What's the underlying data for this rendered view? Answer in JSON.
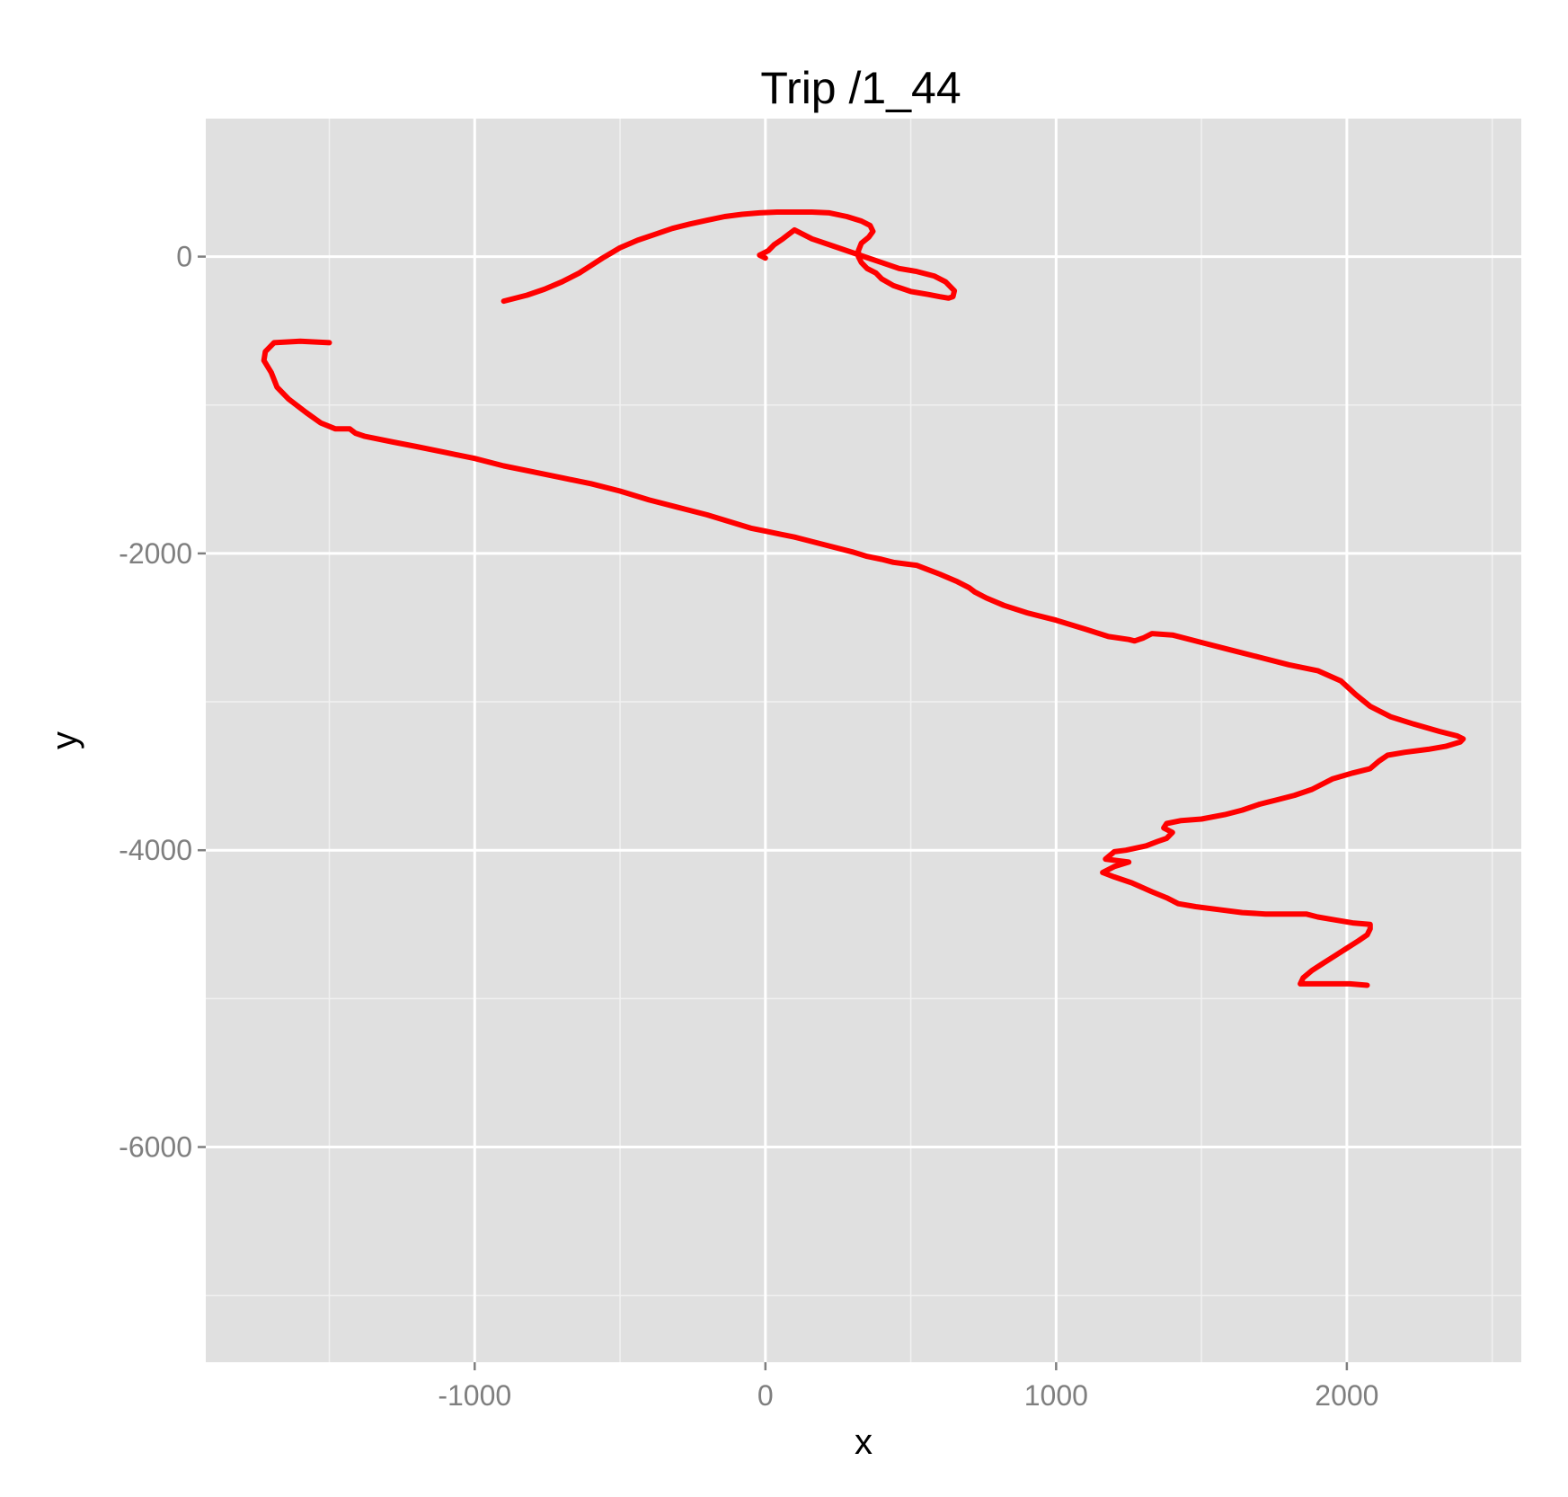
{
  "chart_data": {
    "type": "line",
    "title": "Trip /1_44",
    "xlabel": "x",
    "ylabel": "y",
    "xlim": [
      -1925,
      2600
    ],
    "ylim": [
      -7450,
      930
    ],
    "x_ticks": [
      -1000,
      0,
      1000,
      2000
    ],
    "x_tick_labels": [
      "-1000",
      "0",
      "1000",
      "2000"
    ],
    "x_minor_ticks": [
      -1500,
      -500,
      500,
      1500,
      2500
    ],
    "y_ticks": [
      -6000,
      -4000,
      -2000,
      0
    ],
    "y_tick_labels": [
      "-6000",
      "-4000",
      "-2000",
      "0"
    ],
    "y_minor_ticks": [
      -7000,
      -5000,
      -3000,
      -1000
    ],
    "grid": true,
    "legend": "none",
    "colors": {
      "panel": "#e0e0e0",
      "grid_major": "#ffffff",
      "grid_minor": "#f1f1f1",
      "line": "#ff0000",
      "tick": "#7f7f7f"
    },
    "series": [
      {
        "x": [
          0,
          -20,
          -10,
          10,
          30,
          60,
          80,
          100,
          160,
          220,
          280,
          340,
          400,
          460,
          520,
          580,
          620,
          650,
          645,
          630,
          600,
          560,
          500,
          440,
          400,
          380,
          350,
          330,
          320,
          320,
          330,
          355,
          370,
          360,
          330,
          280,
          220,
          160,
          100,
          40,
          -20,
          -80,
          -140,
          -200,
          -260,
          -320,
          -380,
          -440,
          -500,
          -530,
          -560,
          -600,
          -640,
          -700,
          -760,
          -820,
          -900
        ],
        "y": [
          -10,
          10,
          20,
          40,
          80,
          120,
          150,
          180,
          120,
          80,
          40,
          0,
          -40,
          -80,
          -100,
          -130,
          -170,
          -230,
          -270,
          -280,
          -270,
          -255,
          -235,
          -195,
          -150,
          -110,
          -80,
          -40,
          0,
          40,
          90,
          130,
          170,
          210,
          240,
          270,
          295,
          300,
          300,
          300,
          295,
          285,
          270,
          245,
          220,
          190,
          150,
          110,
          60,
          25,
          -10,
          -60,
          -110,
          -170,
          -220,
          -260,
          -300
        ]
      },
      {
        "x": [
          -1500,
          -1600,
          -1690,
          -1720,
          -1725,
          -1700,
          -1680,
          -1640,
          -1580,
          -1530,
          -1480,
          -1430,
          -1410,
          -1380,
          -1280,
          -1200,
          -1100,
          -1000,
          -900,
          -800,
          -700,
          -600,
          -500,
          -400,
          -300,
          -200,
          -100,
          -50,
          0,
          50,
          100,
          200,
          300,
          350,
          400,
          440,
          480,
          520,
          560,
          600,
          660,
          700,
          720,
          760,
          820,
          900,
          1000,
          1100,
          1180,
          1250,
          1270,
          1300,
          1330,
          1400,
          1500,
          1600,
          1700,
          1800,
          1900,
          1980,
          2030,
          2080,
          2150,
          2230,
          2320,
          2380,
          2400,
          2390,
          2340,
          2280,
          2200,
          2140,
          2110,
          2080,
          2020,
          1950,
          1880,
          1820,
          1760,
          1700,
          1640,
          1580,
          1500,
          1430,
          1380,
          1370,
          1400,
          1380,
          1350,
          1310,
          1240,
          1200,
          1170,
          1250,
          1200,
          1160,
          1200,
          1260,
          1330,
          1380,
          1420,
          1480,
          1560,
          1640,
          1720,
          1800,
          1860,
          1900,
          1960,
          2020,
          2080,
          2080,
          2070,
          2040,
          2000,
          1960,
          1920,
          1880,
          1850,
          1840,
          1860,
          1900,
          1960,
          2010,
          2070
        ],
        "y": [
          -580,
          -570,
          -580,
          -640,
          -700,
          -780,
          -880,
          -960,
          -1050,
          -1120,
          -1160,
          -1160,
          -1190,
          -1210,
          -1250,
          -1280,
          -1320,
          -1360,
          -1410,
          -1450,
          -1490,
          -1530,
          -1580,
          -1640,
          -1690,
          -1740,
          -1800,
          -1830,
          -1850,
          -1870,
          -1890,
          -1940,
          -1990,
          -2020,
          -2040,
          -2060,
          -2070,
          -2080,
          -2110,
          -2140,
          -2190,
          -2230,
          -2260,
          -2300,
          -2350,
          -2400,
          -2450,
          -2510,
          -2560,
          -2580,
          -2590,
          -2570,
          -2540,
          -2550,
          -2600,
          -2650,
          -2700,
          -2750,
          -2790,
          -2860,
          -2950,
          -3030,
          -3100,
          -3150,
          -3200,
          -3230,
          -3250,
          -3270,
          -3300,
          -3320,
          -3340,
          -3360,
          -3400,
          -3450,
          -3480,
          -3520,
          -3590,
          -3630,
          -3660,
          -3690,
          -3730,
          -3760,
          -3790,
          -3800,
          -3820,
          -3850,
          -3880,
          -3920,
          -3940,
          -3970,
          -4000,
          -4010,
          -4060,
          -4080,
          -4110,
          -4150,
          -4180,
          -4220,
          -4280,
          -4320,
          -4360,
          -4380,
          -4400,
          -4420,
          -4430,
          -4430,
          -4430,
          -4450,
          -4470,
          -4490,
          -4500,
          -4530,
          -4570,
          -4610,
          -4660,
          -4710,
          -4760,
          -4810,
          -4860,
          -4900,
          -4900,
          -4900,
          -4900,
          -4900,
          -4910
        ]
      }
    ]
  }
}
